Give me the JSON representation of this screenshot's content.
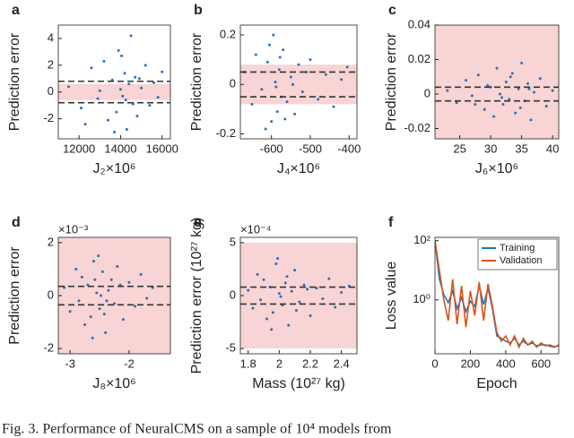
{
  "chart_data": [
    {
      "type": "scatter",
      "panel": "a",
      "xlabel": "J₂×10⁶",
      "ylabel": "Prediction error",
      "color": "#2a72b8",
      "shade_color": "#f8d4d4",
      "shade": [
        -0.6,
        0.6
      ],
      "hlines": [
        -0.8,
        0.8
      ],
      "xlim": [
        11000,
        16400
      ],
      "xticks": [
        12000,
        14000,
        16000
      ],
      "ylim": [
        -3.5,
        5
      ],
      "yticks": [
        -2,
        0,
        2,
        4
      ],
      "x": [
        11500,
        12100,
        12600,
        12900,
        13200,
        13400,
        13600,
        13800,
        13900,
        14000,
        14100,
        14200,
        14300,
        14400,
        14500,
        14600,
        14700,
        14800,
        15000,
        15200,
        15400,
        15600,
        15800,
        16000,
        12300,
        13000,
        13700,
        14050,
        14250,
        14900
      ],
      "values": [
        0.4,
        -1.2,
        1.8,
        -0.5,
        2.3,
        -2.1,
        0.9,
        -1.5,
        3.1,
        0.2,
        -0.3,
        1.4,
        -2.8,
        0.6,
        4.2,
        -0.9,
        1.1,
        -1.8,
        0.3,
        2.0,
        -1.0,
        0.7,
        -0.4,
        1.5,
        -2.4,
        0.1,
        -3.0,
        2.7,
        -0.6,
        1.0
      ]
    },
    {
      "type": "scatter",
      "panel": "b",
      "xlabel": "J₄×10⁶",
      "ylabel": "Prediction error",
      "color": "#2a72b8",
      "shade_color": "#f8d4d4",
      "shade": [
        -0.08,
        0.08
      ],
      "hlines": [
        -0.05,
        0.05
      ],
      "xlim": [
        -680,
        -380
      ],
      "xticks": [
        -600,
        -500,
        -400
      ],
      "ylim": [
        -0.22,
        0.24
      ],
      "yticks": [
        -0.2,
        0,
        0.2
      ],
      "x": [
        -670,
        -650,
        -640,
        -625,
        -610,
        -600,
        -595,
        -590,
        -585,
        -580,
        -575,
        -570,
        -560,
        -550,
        -540,
        -530,
        -520,
        -500,
        -480,
        -460,
        -440,
        -420,
        -405,
        -615,
        -605,
        -588,
        -578,
        -565,
        -545,
        -510
      ],
      "values": [
        0.05,
        -0.08,
        0.12,
        -0.02,
        0.09,
        -0.15,
        0.2,
        0.01,
        -0.11,
        0.06,
        -0.05,
        0.14,
        -0.07,
        0.03,
        -0.12,
        0.08,
        -0.03,
        0.1,
        -0.06,
        0.04,
        -0.09,
        0.02,
        0.07,
        -0.18,
        0.16,
        -0.01,
        0.11,
        -0.14,
        0.0,
        0.05
      ]
    },
    {
      "type": "scatter",
      "panel": "c",
      "xlabel": "J₆×10⁶",
      "ylabel": "Prediction error",
      "color": "#2a72b8",
      "shade_color": "#f8d4d4",
      "shade": [
        -0.026,
        0.04
      ],
      "hlines": [
        -0.004,
        0.004
      ],
      "xlim": [
        21,
        41
      ],
      "xticks": [
        25,
        30,
        35,
        40
      ],
      "ylim": [
        -0.026,
        0.04
      ],
      "yticks": [
        -0.02,
        0,
        0.02,
        0.04
      ],
      "x": [
        23,
        24.5,
        26,
        27,
        28,
        29,
        30,
        30.5,
        31,
        31.5,
        32,
        32.5,
        33,
        33.5,
        34,
        34.5,
        35,
        35.5,
        36,
        36.5,
        37,
        38,
        39,
        40,
        29.5,
        31.8,
        33.2,
        34.8,
        36.2,
        27.5
      ],
      "values": [
        0.002,
        -0.005,
        0.008,
        -0.001,
        0.011,
        -0.009,
        0.004,
        -0.013,
        0.015,
        0.0,
        -0.006,
        0.007,
        -0.003,
        0.012,
        -0.011,
        0.003,
        0.018,
        -0.004,
        0.006,
        -0.015,
        0.001,
        0.009,
        -0.007,
        0.002,
        0.005,
        -0.002,
        0.01,
        -0.008,
        0.003,
        -0.006
      ]
    },
    {
      "type": "scatter",
      "panel": "d",
      "xlabel": "J₈×10⁶",
      "ylabel": "Prediction error",
      "y_exponent": "×10⁻³",
      "color": "#2a72b8",
      "shade_color": "#f8d4d4",
      "shade": [
        -2.2,
        2.2
      ],
      "hlines": [
        -0.35,
        0.35
      ],
      "xlim": [
        -3.2,
        -1.3
      ],
      "xticks": [
        -3,
        -2
      ],
      "ylim": [
        -2.2,
        2.2
      ],
      "yticks": [
        -2,
        0,
        2
      ],
      "x": [
        -3.1,
        -3.0,
        -2.9,
        -2.85,
        -2.8,
        -2.75,
        -2.7,
        -2.65,
        -2.6,
        -2.55,
        -2.5,
        -2.45,
        -2.4,
        -2.35,
        -2.3,
        -2.25,
        -2.2,
        -2.1,
        -2.0,
        -1.9,
        -1.8,
        -1.7,
        -1.6,
        -2.62,
        -2.52,
        -2.48,
        -2.42,
        -2.58,
        -2.38,
        -2.15
      ],
      "values": [
        0.3,
        -0.6,
        1.0,
        -0.2,
        0.7,
        -1.1,
        0.4,
        -0.8,
        1.3,
        0.1,
        -0.5,
        0.9,
        -1.4,
        0.2,
        0.6,
        -0.3,
        1.1,
        -0.9,
        0.5,
        -0.4,
        0.8,
        -0.1,
        0.3,
        -1.6,
        1.5,
        0.0,
        -0.7,
        0.6,
        -0.2,
        0.4
      ]
    },
    {
      "type": "scatter",
      "panel": "e",
      "xlabel": "Mass (10²⁷ kg)",
      "ylabel": "Prediction error (10²⁷ kg)",
      "y_exponent": "×10⁻⁴",
      "color": "#2a72b8",
      "shade_color": "#f8d4d4",
      "shade": [
        -5,
        5
      ],
      "hlines": [
        -0.8,
        0.8
      ],
      "xlim": [
        1.75,
        2.5
      ],
      "xticks": [
        1.8,
        2,
        2.2,
        2.4
      ],
      "ylim": [
        -5.5,
        5.5
      ],
      "yticks": [
        -5,
        0,
        5
      ],
      "x": [
        1.8,
        1.83,
        1.86,
        1.88,
        1.9,
        1.92,
        1.94,
        1.96,
        1.98,
        2.0,
        2.02,
        2.04,
        2.06,
        2.08,
        2.1,
        2.13,
        2.16,
        2.2,
        2.24,
        2.28,
        2.32,
        2.36,
        2.4,
        2.45,
        1.95,
        1.99,
        2.01,
        2.05,
        2.11,
        2.18
      ],
      "values": [
        0.5,
        -1.2,
        2.0,
        -0.4,
        1.5,
        -2.2,
        0.8,
        -1.6,
        3.0,
        0.2,
        -0.9,
        1.2,
        -2.8,
        0.4,
        2.4,
        -0.6,
        1.0,
        -1.9,
        0.7,
        -0.3,
        1.6,
        -1.1,
        0.3,
        0.9,
        -3.2,
        3.5,
        -0.1,
        1.8,
        -1.4,
        0.6
      ]
    },
    {
      "type": "line",
      "panel": "f",
      "xlabel": "Epoch",
      "ylabel": "Loss value",
      "log_y": true,
      "legend": "upper right",
      "xlim": [
        0,
        700
      ],
      "xticks": [
        0,
        200,
        400,
        600
      ],
      "ylim": [
        0.015,
        130
      ],
      "yticks": [
        {
          "value": 1,
          "label": "10⁰"
        },
        {
          "value": 100,
          "label": "10²"
        }
      ],
      "x": [
        0,
        25,
        50,
        75,
        100,
        125,
        150,
        175,
        200,
        225,
        250,
        275,
        300,
        325,
        350,
        375,
        400,
        425,
        450,
        475,
        500,
        525,
        550,
        575,
        600,
        625,
        650,
        675,
        700
      ],
      "series": [
        {
          "name": "Training",
          "color": "#1f77c4",
          "values": [
            100,
            5,
            1.5,
            0.8,
            2,
            0.5,
            1.2,
            0.4,
            0.9,
            0.6,
            3,
            0.7,
            2.5,
            0.5,
            0.06,
            0.05,
            0.04,
            0.035,
            0.05,
            0.03,
            0.04,
            0.03,
            0.035,
            0.028,
            0.03,
            0.03,
            0.027,
            0.025,
            0.03
          ]
        },
        {
          "name": "Validation",
          "color": "#d9541a",
          "values": [
            100,
            10,
            1.0,
            0.2,
            5,
            0.15,
            3,
            0.12,
            2,
            0.3,
            4,
            0.2,
            3.5,
            0.6,
            0.08,
            0.04,
            0.06,
            0.03,
            0.06,
            0.025,
            0.05,
            0.03,
            0.04,
            0.025,
            0.035,
            0.028,
            0.03,
            0.026,
            0.028
          ]
        }
      ]
    }
  ],
  "caption": "Fig. 3. Performance of NeuralCMS on a sample of 10⁴ models from"
}
